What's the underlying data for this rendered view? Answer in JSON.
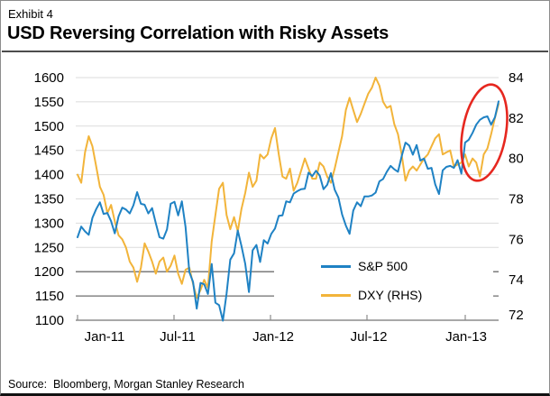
{
  "header": {
    "exhibit_label": "Exhibit 4",
    "title": "USD Reversing Correlation with Risky Assets"
  },
  "source_line": "Source:  Bloomberg, Morgan Stanley Research",
  "legend": {
    "items": [
      {
        "label": "S&P 500"
      },
      {
        "label": "DXY (RHS)"
      }
    ]
  },
  "chart_data": {
    "type": "line",
    "title": "USD Reversing Correlation with Risky Assets",
    "frequency": "weekly",
    "x_start": "Jan-2011",
    "x_end": "Mar-2013",
    "x_tick_labels": [
      "Jan-11",
      "Jul-11",
      "Jan-12",
      "Jul-12",
      "Jan-13"
    ],
    "grid": "horizontal",
    "legend_position": "inside-lower-right",
    "left_axis": {
      "series": "S&P 500",
      "min": 1100,
      "max": 1600,
      "ticks": [
        1600,
        1550,
        1500,
        1450,
        1400,
        1350,
        1300,
        1250,
        1200,
        1150,
        1100
      ]
    },
    "right_axis": {
      "series": "DXY",
      "min": 72,
      "max": 84,
      "ticks": [
        84,
        82,
        80,
        78,
        76,
        74,
        72
      ]
    },
    "emphasized_gridlines": [
      1200,
      1150
    ],
    "series": [
      {
        "name": "S&P 500",
        "axis": "left",
        "color": "#1F82C4",
        "values": [
          1271,
          1293,
          1283,
          1276,
          1311,
          1329,
          1343,
          1319,
          1321,
          1304,
          1279,
          1314,
          1332,
          1328,
          1320,
          1337,
          1364,
          1340,
          1338,
          1320,
          1331,
          1300,
          1271,
          1268,
          1287,
          1340,
          1344,
          1316,
          1345,
          1292,
          1199,
          1179,
          1124,
          1177,
          1174,
          1154,
          1216,
          1136,
          1131,
          1099,
          1155,
          1225,
          1238,
          1285,
          1253,
          1216,
          1158,
          1244,
          1255,
          1220,
          1265,
          1258,
          1278,
          1289,
          1315,
          1316,
          1345,
          1343,
          1361,
          1366,
          1370,
          1371,
          1404,
          1397,
          1408,
          1398,
          1370,
          1379,
          1403,
          1369,
          1353,
          1318,
          1295,
          1278,
          1326,
          1343,
          1335,
          1355,
          1355,
          1357,
          1363,
          1386,
          1391,
          1406,
          1418,
          1411,
          1406,
          1438,
          1466,
          1460,
          1441,
          1461,
          1429,
          1433,
          1412,
          1414,
          1380,
          1360,
          1409,
          1416,
          1418,
          1414,
          1430,
          1402,
          1466,
          1472,
          1486,
          1503,
          1513,
          1518,
          1520,
          1503,
          1518,
          1551
        ]
      },
      {
        "name": "DXY (RHS)",
        "axis": "right",
        "color": "#F2B43A",
        "values": [
          79.2,
          78.8,
          80.3,
          81.1,
          80.6,
          79.6,
          78.6,
          78.2,
          77.3,
          77.7,
          76.9,
          76.2,
          76.0,
          75.6,
          74.9,
          74.6,
          73.9,
          74.6,
          75.8,
          75.4,
          74.9,
          74.3,
          74.9,
          75.1,
          74.4,
          74.7,
          75.2,
          74.3,
          73.8,
          74.5,
          74.6,
          73.8,
          73.1,
          73.5,
          74.0,
          73.6,
          75.9,
          77.2,
          78.5,
          78.8,
          77.2,
          76.5,
          77.1,
          76.4,
          77.5,
          78.3,
          79.3,
          78.6,
          78.9,
          80.2,
          80.0,
          80.2,
          81.0,
          81.5,
          80.2,
          79.1,
          79.0,
          79.5,
          78.4,
          78.8,
          79.4,
          80.0,
          79.5,
          79.0,
          79.0,
          79.8,
          79.6,
          79.1,
          78.8,
          79.5,
          80.3,
          81.1,
          82.4,
          83.0,
          82.4,
          81.8,
          82.2,
          82.7,
          83.2,
          83.5,
          84.0,
          83.6,
          82.8,
          82.5,
          82.6,
          81.7,
          81.2,
          80.2,
          78.9,
          79.4,
          79.6,
          79.4,
          79.7,
          80.0,
          80.2,
          80.6,
          81.0,
          81.2,
          80.2,
          80.3,
          80.4,
          79.6,
          79.7,
          79.8,
          80.2,
          79.6,
          80.0,
          79.8,
          79.1,
          80.2,
          80.5,
          81.2,
          82.0,
          82.7
        ]
      }
    ],
    "annotation": {
      "shape": "ellipse",
      "color": "#E6271F",
      "highlights": "early-2013 period where S&P 500 and DXY rise together"
    }
  }
}
